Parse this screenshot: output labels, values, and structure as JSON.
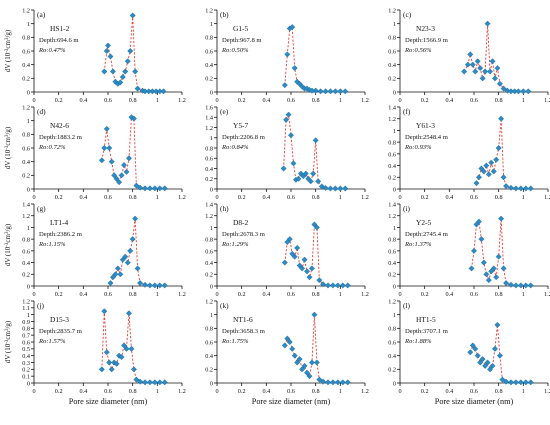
{
  "figure": {
    "shared_xlabel": "Pore size diameter (nm)",
    "ylabel_html_parts": [
      "dV (10",
      "-3",
      "cm",
      "3",
      "/g)"
    ],
    "colors": {
      "line": "#e8413c",
      "marker": "#2b8bc6",
      "marker_edge": "#1b5f8c",
      "axis": "#111111"
    }
  },
  "chart_data": [
    {
      "type": "line",
      "panel": "(a)",
      "sample": "HS1-2",
      "depth": "Depth:694.6 m",
      "ro": "Ro:0.47%",
      "xlim": [
        0,
        1.2
      ],
      "ylim": [
        0,
        1.2
      ],
      "xticks": [
        "0",
        "0.2",
        "0.4",
        "0.6",
        "0.8",
        "1",
        "1.2"
      ],
      "yticks": [
        "0",
        "0.2",
        "0.4",
        "0.6",
        "0.8",
        "1",
        "1.2"
      ],
      "show_xlabel": false,
      "show_ylabel": true,
      "x": [
        0.57,
        0.59,
        0.6,
        0.62,
        0.64,
        0.66,
        0.68,
        0.7,
        0.72,
        0.74,
        0.76,
        0.78,
        0.8,
        0.82,
        0.84,
        0.88,
        0.9,
        0.93,
        0.96,
        0.99,
        1.02,
        1.05
      ],
      "y": [
        0.3,
        0.6,
        0.68,
        0.52,
        0.3,
        0.15,
        0.12,
        0.14,
        0.22,
        0.3,
        0.45,
        0.6,
        1.12,
        0.3,
        0.05,
        0.02,
        0.01,
        0.01,
        0.01,
        0.01,
        0.01,
        0.01
      ]
    },
    {
      "type": "line",
      "panel": "(b)",
      "sample": "G1-5",
      "depth": "Depth:967.8 m",
      "ro": "Ro:0.50%",
      "xlim": [
        0,
        1.2
      ],
      "ylim": [
        0,
        1.2
      ],
      "xticks": [
        "0",
        "0.2",
        "0.4",
        "0.6",
        "0.8",
        "1",
        "1.2"
      ],
      "yticks": [
        "0",
        "0.2",
        "0.4",
        "0.6",
        "0.8",
        "1",
        "1.2"
      ],
      "show_xlabel": false,
      "show_ylabel": false,
      "x": [
        0.55,
        0.57,
        0.59,
        0.61,
        0.63,
        0.65,
        0.67,
        0.69,
        0.71,
        0.73,
        0.75,
        0.77,
        0.8,
        0.84,
        0.88,
        0.92,
        0.96,
        1.0,
        1.04
      ],
      "y": [
        0.1,
        0.55,
        0.93,
        0.95,
        0.35,
        0.15,
        0.12,
        0.08,
        0.05,
        0.05,
        0.03,
        0.02,
        0.02,
        0.01,
        0.01,
        0.01,
        0.01,
        0.01,
        0.01
      ]
    },
    {
      "type": "line",
      "panel": "(c)",
      "sample": "N23-3",
      "depth": "Depth:1566.9 m",
      "ro": "Ro:0.56%",
      "xlim": [
        0,
        1.2
      ],
      "ylim": [
        0,
        1.2
      ],
      "xticks": [
        "0",
        "0.2",
        "0.4",
        "0.6",
        "0.8",
        "1",
        "1.2"
      ],
      "yticks": [
        "0",
        "0.2",
        "0.4",
        "0.6",
        "0.8",
        "1",
        "1.2"
      ],
      "show_xlabel": false,
      "show_ylabel": false,
      "x": [
        0.52,
        0.55,
        0.57,
        0.59,
        0.61,
        0.63,
        0.65,
        0.67,
        0.69,
        0.71,
        0.73,
        0.75,
        0.77,
        0.79,
        0.81,
        0.84,
        0.87,
        0.9,
        0.93,
        0.96,
        1.0,
        1.04
      ],
      "y": [
        0.3,
        0.4,
        0.55,
        0.4,
        0.3,
        0.45,
        0.35,
        0.2,
        0.3,
        1.0,
        0.3,
        0.45,
        0.2,
        0.35,
        0.12,
        0.05,
        0.02,
        0.01,
        0.01,
        0.01,
        0.01,
        0.01
      ]
    },
    {
      "type": "line",
      "panel": "(d)",
      "sample": "N42-6",
      "depth": "Depth:1883.2 m",
      "ro": "Ro:0.72%",
      "xlim": [
        0,
        1.2
      ],
      "ylim": [
        0,
        1.2
      ],
      "xticks": [
        "0",
        "0.2",
        "0.4",
        "0.6",
        "0.8",
        "1",
        "1.2"
      ],
      "yticks": [
        "0",
        "0.2",
        "0.4",
        "0.6",
        "0.8",
        "1",
        "1.2"
      ],
      "show_xlabel": false,
      "show_ylabel": true,
      "x": [
        0.55,
        0.57,
        0.59,
        0.61,
        0.63,
        0.65,
        0.67,
        0.69,
        0.71,
        0.73,
        0.75,
        0.77,
        0.79,
        0.81,
        0.83,
        0.86,
        0.9,
        0.94,
        0.98,
        1.02,
        1.06
      ],
      "y": [
        0.42,
        0.6,
        0.88,
        0.6,
        0.4,
        0.2,
        0.15,
        0.1,
        0.2,
        0.35,
        0.25,
        0.45,
        1.05,
        1.03,
        0.05,
        0.02,
        0.01,
        0.01,
        0.01,
        0.01,
        0.01
      ]
    },
    {
      "type": "line",
      "panel": "(e)",
      "sample": "Y5-7",
      "depth": "Depth:2206.8 m",
      "ro": "Ro:0.84%",
      "xlim": [
        0,
        1.2
      ],
      "ylim": [
        0,
        1.6
      ],
      "xticks": [
        "0",
        "0.2",
        "0.4",
        "0.6",
        "0.8",
        "1",
        "1.2"
      ],
      "yticks": [
        "0",
        "0.2",
        "0.4",
        "0.6",
        "0.8",
        "1",
        "1.2",
        "1.4",
        "1.6"
      ],
      "show_xlabel": false,
      "show_ylabel": false,
      "x": [
        0.54,
        0.56,
        0.58,
        0.6,
        0.62,
        0.64,
        0.66,
        0.68,
        0.7,
        0.72,
        0.74,
        0.76,
        0.78,
        0.8,
        0.82,
        0.85,
        0.88,
        0.92,
        0.96,
        1.0,
        1.04
      ],
      "y": [
        0.4,
        1.35,
        1.45,
        1.05,
        0.5,
        0.18,
        0.2,
        0.3,
        0.25,
        0.3,
        0.2,
        0.15,
        0.3,
        0.95,
        0.15,
        0.05,
        0.02,
        0.01,
        0.01,
        0.01,
        0.01
      ]
    },
    {
      "type": "line",
      "panel": "(f)",
      "sample": "Y61-3",
      "depth": "Depth:2548.4 m",
      "ro": "Ro:0.93%",
      "xlim": [
        0,
        1.2
      ],
      "ylim": [
        0,
        1.4
      ],
      "xticks": [
        "0",
        "0.2",
        "0.4",
        "0.6",
        "0.8",
        "1",
        "1.2"
      ],
      "yticks": [
        "0",
        "0.2",
        "0.4",
        "0.6",
        "0.8",
        "1",
        "1.2",
        "1.4"
      ],
      "show_xlabel": false,
      "show_ylabel": false,
      "x": [
        0.62,
        0.64,
        0.66,
        0.68,
        0.7,
        0.72,
        0.74,
        0.76,
        0.78,
        0.8,
        0.82,
        0.84,
        0.86,
        0.9,
        0.94,
        0.98,
        1.02,
        1.06
      ],
      "y": [
        0.1,
        0.2,
        0.35,
        0.3,
        0.4,
        0.25,
        0.45,
        0.3,
        0.5,
        0.7,
        1.2,
        0.2,
        0.05,
        0.02,
        0.01,
        0.01,
        0.01,
        0.01
      ]
    },
    {
      "type": "line",
      "panel": "(g)",
      "sample": "LT1-4",
      "depth": "Depth:2386.2 m",
      "ro": "Ro:1.15%",
      "xlim": [
        0,
        1.2
      ],
      "ylim": [
        0,
        1.4
      ],
      "xticks": [
        "0",
        "0.2",
        "0.4",
        "0.6",
        "0.8",
        "1",
        "1.2"
      ],
      "yticks": [
        "0",
        "0.2",
        "0.4",
        "0.6",
        "0.8",
        "1",
        "1.2",
        "1.4"
      ],
      "show_xlabel": false,
      "show_ylabel": true,
      "x": [
        0.62,
        0.64,
        0.66,
        0.68,
        0.7,
        0.72,
        0.74,
        0.76,
        0.78,
        0.8,
        0.82,
        0.84,
        0.86,
        0.9,
        0.94,
        0.98,
        1.02,
        1.06
      ],
      "y": [
        0.05,
        0.15,
        0.2,
        0.3,
        0.2,
        0.45,
        0.5,
        0.4,
        0.6,
        0.8,
        1.15,
        0.3,
        0.05,
        0.02,
        0.01,
        0.01,
        0.01,
        0.01
      ]
    },
    {
      "type": "line",
      "panel": "(h)",
      "sample": "D8-2",
      "depth": "Depth:2678.3 m",
      "ro": "Ro:1.29%",
      "xlim": [
        0,
        1.2
      ],
      "ylim": [
        0,
        1.4
      ],
      "xticks": [
        "0",
        "0.2",
        "0.4",
        "0.6",
        "0.8",
        "1",
        "1.2"
      ],
      "yticks": [
        "0",
        "0.2",
        "0.4",
        "0.6",
        "0.8",
        "1",
        "1.2",
        "1.4"
      ],
      "show_xlabel": false,
      "show_ylabel": false,
      "x": [
        0.55,
        0.57,
        0.59,
        0.61,
        0.63,
        0.65,
        0.67,
        0.69,
        0.71,
        0.73,
        0.75,
        0.77,
        0.79,
        0.81,
        0.83,
        0.86,
        0.9,
        0.94,
        0.98,
        1.02,
        1.06
      ],
      "y": [
        0.4,
        0.75,
        0.8,
        0.55,
        0.5,
        0.65,
        0.35,
        0.3,
        0.45,
        0.25,
        0.15,
        0.3,
        1.05,
        1.0,
        0.1,
        0.03,
        0.01,
        0.01,
        0.01,
        0.01,
        0.01
      ]
    },
    {
      "type": "line",
      "panel": "(i)",
      "sample": "Y2-5",
      "depth": "Depth:2745.4 m",
      "ro": "Ro:1.37%",
      "xlim": [
        0,
        1.2
      ],
      "ylim": [
        0,
        1.4
      ],
      "xticks": [
        "0",
        "0.2",
        "0.4",
        "0.6",
        "0.8",
        "1",
        "1.2"
      ],
      "yticks": [
        "0",
        "0.2",
        "0.4",
        "0.6",
        "0.8",
        "1",
        "1.2",
        "1.4"
      ],
      "show_xlabel": false,
      "show_ylabel": false,
      "x": [
        0.58,
        0.6,
        0.62,
        0.64,
        0.66,
        0.68,
        0.7,
        0.72,
        0.74,
        0.76,
        0.78,
        0.8,
        0.82,
        0.84,
        0.86,
        0.9,
        0.94,
        0.98,
        1.02,
        1.06
      ],
      "y": [
        0.3,
        0.6,
        1.05,
        1.1,
        0.8,
        0.4,
        0.2,
        0.1,
        0.25,
        0.3,
        0.15,
        0.5,
        1.15,
        0.3,
        0.05,
        0.02,
        0.01,
        0.01,
        0.01,
        0.01
      ]
    },
    {
      "type": "line",
      "panel": "(j)",
      "sample": "D15-3",
      "depth": "Depth:2835.7 m",
      "ro": "Ro:1.57%",
      "xlim": [
        0,
        1.2
      ],
      "ylim": [
        0,
        1.2
      ],
      "xticks": [
        "0",
        "0.2",
        "0.4",
        "0.6",
        "0.8",
        "1",
        "1.2"
      ],
      "yticks": [
        "0",
        "0.1",
        "0.2",
        "0.3",
        "0.4",
        "0.5",
        "0.6",
        "0.7",
        "0.8",
        "0.9",
        "1",
        "1.1",
        "1.2"
      ],
      "show_xlabel": false,
      "show_ylabel": true,
      "x": [
        0.55,
        0.57,
        0.59,
        0.61,
        0.63,
        0.65,
        0.67,
        0.69,
        0.71,
        0.73,
        0.75,
        0.77,
        0.79,
        0.81,
        0.83,
        0.86,
        0.9,
        0.94,
        0.98,
        1.02,
        1.06
      ],
      "y": [
        0.2,
        1.05,
        0.45,
        0.3,
        0.2,
        0.3,
        0.28,
        0.4,
        0.38,
        0.55,
        0.5,
        1.02,
        0.5,
        0.2,
        0.05,
        0.02,
        0.01,
        0.01,
        0.01,
        0.01,
        0.01
      ]
    },
    {
      "type": "line",
      "panel": "(k)",
      "sample": "NT1-6",
      "depth": "Depth:3658.3 m",
      "ro": "Ro:1.75%",
      "xlim": [
        0,
        1.2
      ],
      "ylim": [
        0,
        1.2
      ],
      "xticks": [
        "0",
        "0.2",
        "0.4",
        "0.6",
        "0.8",
        "1",
        "1.2"
      ],
      "yticks": [
        "0",
        "0.2",
        "0.4",
        "0.6",
        "0.8",
        "1",
        "1.2"
      ],
      "show_xlabel": true,
      "show_ylabel": false,
      "x": [
        0.55,
        0.57,
        0.59,
        0.61,
        0.63,
        0.65,
        0.67,
        0.69,
        0.71,
        0.73,
        0.75,
        0.77,
        0.79,
        0.81,
        0.83,
        0.86,
        0.9,
        0.94,
        0.98,
        1.02,
        1.06
      ],
      "y": [
        0.55,
        0.65,
        0.6,
        0.5,
        0.4,
        0.3,
        0.35,
        0.2,
        0.25,
        0.15,
        0.1,
        0.3,
        1.0,
        0.3,
        0.05,
        0.02,
        0.01,
        0.01,
        0.01,
        0.01,
        0.01
      ]
    },
    {
      "type": "line",
      "panel": "(l)",
      "sample": "HT1-5",
      "depth": "Depth:3707.1 m",
      "ro": "Ro:1.88%",
      "xlim": [
        0,
        1.2
      ],
      "ylim": [
        0,
        1.2
      ],
      "xticks": [
        "0",
        "0.2",
        "0.4",
        "0.6",
        "0.8",
        "1",
        "1.2"
      ],
      "yticks": [
        "0",
        "0.2",
        "0.4",
        "0.6",
        "0.8",
        "1",
        "1.2"
      ],
      "show_xlabel": false,
      "show_ylabel": false,
      "x": [
        0.57,
        0.59,
        0.61,
        0.63,
        0.65,
        0.67,
        0.69,
        0.71,
        0.73,
        0.75,
        0.77,
        0.79,
        0.81,
        0.83,
        0.86,
        0.9,
        0.94,
        0.98,
        1.02,
        1.06
      ],
      "y": [
        0.45,
        0.55,
        0.5,
        0.4,
        0.3,
        0.35,
        0.25,
        0.3,
        0.2,
        0.25,
        0.5,
        0.85,
        0.4,
        0.05,
        0.02,
        0.01,
        0.01,
        0.01,
        0.01,
        0.01
      ]
    }
  ]
}
